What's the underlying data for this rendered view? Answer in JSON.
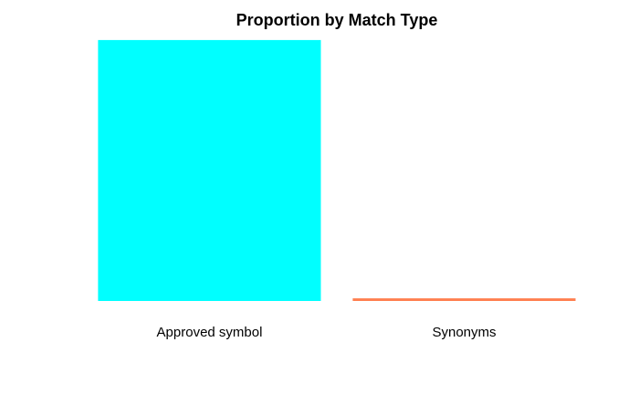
{
  "chart_data": {
    "type": "bar",
    "title": "Proportion by Match Type",
    "xlabel": "",
    "ylabel": "",
    "categories": [
      "Approved symbol",
      "Synonyms"
    ],
    "values": [
      0.99,
      0.01
    ],
    "colors": [
      "#00FFFF",
      "#FF7F50"
    ],
    "ylim": [
      0,
      1
    ],
    "grid": false,
    "axes_visible": false
  }
}
